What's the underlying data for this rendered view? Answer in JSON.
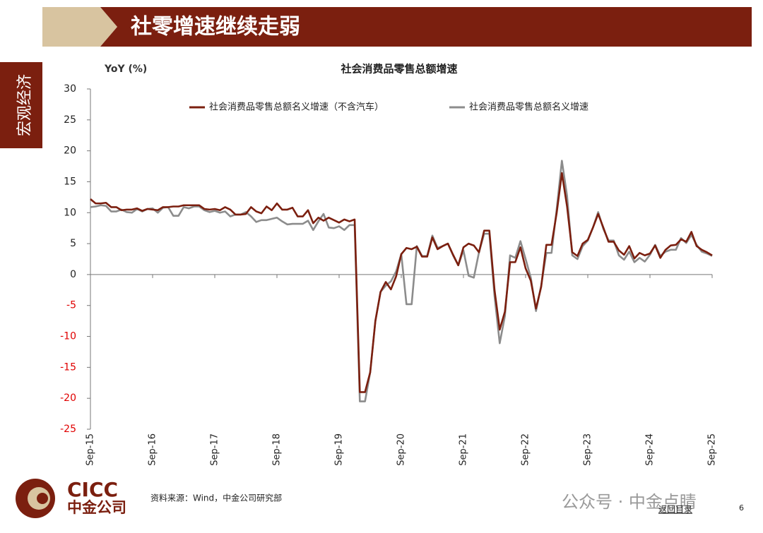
{
  "slide": {
    "heading": "社零增速继续走弱",
    "section": "宏观经济",
    "source": "资料来源：Wind，中金公司研究部",
    "logo_en": "CICC",
    "logo_cn": "中金公司",
    "watermark": "公众号 · 中金点睛",
    "back_link": "返回目录",
    "page_number": "6"
  },
  "chart_data": {
    "type": "line",
    "title": "社会消费品零售总额增速",
    "y_label": "YoY (%)",
    "categories": [
      "Sep-15",
      null,
      null,
      null,
      null,
      null,
      null,
      null,
      null,
      null,
      null,
      null,
      "Sep-16",
      null,
      null,
      null,
      null,
      null,
      null,
      null,
      null,
      null,
      null,
      null,
      "Sep-17",
      null,
      null,
      null,
      null,
      null,
      null,
      null,
      null,
      null,
      null,
      null,
      "Sep-18",
      null,
      null,
      null,
      null,
      null,
      null,
      null,
      null,
      null,
      null,
      null,
      "Sep-19",
      null,
      null,
      null,
      null,
      null,
      null,
      null,
      null,
      null,
      null,
      null,
      "Sep-20",
      null,
      null,
      null,
      null,
      null,
      null,
      null,
      null,
      null,
      null,
      null,
      "Sep-21",
      null,
      null,
      null,
      null,
      null,
      null,
      null,
      null,
      null,
      null,
      null,
      "Sep-22",
      null,
      null,
      null,
      null,
      null,
      null,
      null,
      null,
      null,
      null,
      null,
      "Sep-23",
      null,
      null,
      null,
      null,
      null,
      null,
      null,
      null,
      null,
      null,
      null,
      "Sep-24",
      null,
      null,
      null,
      null,
      null,
      null,
      null,
      null,
      null,
      null,
      null,
      "Sep-25"
    ],
    "series": [
      {
        "name": "社会消费品零售总额名义增速（不含汽车）",
        "color": "#7b1f0f",
        "values": [
          12.2,
          11.5,
          11.5,
          11.6,
          10.9,
          10.9,
          10.4,
          10.5,
          10.5,
          10.7,
          10.3,
          10.6,
          10.5,
          10.4,
          10.9,
          10.9,
          11.0,
          11.0,
          11.2,
          11.2,
          11.2,
          11.2,
          10.6,
          10.5,
          10.6,
          10.4,
          10.9,
          10.5,
          9.7,
          9.7,
          9.8,
          10.9,
          10.2,
          9.9,
          11.0,
          10.4,
          11.5,
          10.5,
          10.5,
          10.8,
          9.4,
          9.4,
          10.4,
          8.3,
          9.2,
          8.7,
          9.2,
          8.8,
          8.4,
          8.9,
          8.6,
          8.9,
          -19.0,
          -19.0,
          -15.8,
          -7.5,
          -2.8,
          -1.2,
          -2.4,
          -0.3,
          3.3,
          4.3,
          4.1,
          4.5,
          2.9,
          2.9,
          6.0,
          4.1,
          4.6,
          5.0,
          3.2,
          1.5,
          4.4,
          5.0,
          4.7,
          3.6,
          7.1,
          7.1,
          -2.5,
          -8.9,
          -6.0,
          2.0,
          2.0,
          4.4,
          1.0,
          -1.0,
          -5.5,
          -2.0,
          4.8,
          4.8,
          10.0,
          16.4,
          11.0,
          3.6,
          3.0,
          5.0,
          5.6,
          7.6,
          9.8,
          7.6,
          5.3,
          5.3,
          3.9,
          3.2,
          4.6,
          2.6,
          3.5,
          3.1,
          3.4,
          4.7,
          2.7,
          4.0,
          4.7,
          4.8,
          5.7,
          5.3,
          6.9,
          4.6,
          4.0,
          3.6,
          3.1
        ]
      },
      {
        "name": "社会消费品零售总额名义增速",
        "color": "#8c8c8c",
        "values": [
          10.9,
          11.0,
          11.2,
          11.1,
          10.2,
          10.2,
          10.5,
          10.1,
          10.0,
          10.6,
          10.2,
          10.6,
          10.7,
          10.0,
          10.8,
          10.9,
          9.5,
          9.5,
          10.9,
          10.7,
          11.0,
          11.0,
          10.4,
          10.1,
          10.3,
          10.0,
          10.2,
          9.4,
          9.7,
          9.7,
          10.1,
          9.4,
          8.5,
          8.8,
          8.8,
          9.0,
          9.2,
          8.6,
          8.1,
          8.2,
          8.2,
          8.2,
          8.7,
          7.2,
          8.6,
          9.8,
          7.6,
          7.5,
          7.8,
          7.2,
          8.0,
          8.0,
          -20.5,
          -20.5,
          -15.8,
          -7.5,
          -2.8,
          -1.8,
          -1.1,
          0.5,
          3.3,
          -4.8,
          -4.8,
          4.6,
          3.0,
          3.0,
          6.3,
          4.3,
          4.6,
          5.0,
          3.1,
          1.5,
          3.9,
          -0.2,
          -0.5,
          3.6,
          6.6,
          6.6,
          -3.5,
          -11.1,
          -6.7,
          3.1,
          2.7,
          5.4,
          2.5,
          -0.5,
          -5.9,
          -1.8,
          3.5,
          3.5,
          10.6,
          18.4,
          12.7,
          3.1,
          2.5,
          4.6,
          5.5,
          7.6,
          10.1,
          7.4,
          5.5,
          5.5,
          3.1,
          2.4,
          3.7,
          2.0,
          2.7,
          2.1,
          3.2,
          4.8,
          3.0,
          3.7,
          4.0,
          4.0,
          5.9,
          5.1,
          6.4,
          4.8,
          3.7,
          3.4,
          3.0
        ]
      }
    ],
    "ylim": [
      -25,
      30
    ],
    "yticks": [
      -25,
      -20,
      -15,
      -10,
      -5,
      0,
      5,
      10,
      15,
      20,
      25,
      30
    ],
    "negative_tick_color": "#e00000",
    "grid": false
  }
}
